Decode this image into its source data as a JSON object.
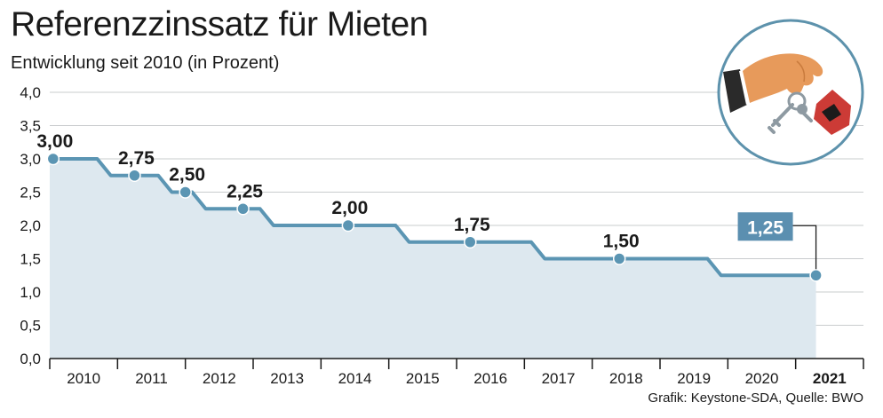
{
  "title": "Referenzzinssatz für Mieten",
  "subtitle": "Entwicklung seit 2010 (in Prozent)",
  "source": "Grafik: Keystone-SDA, Quelle: BWO",
  "colors": {
    "line": "#5b95b3",
    "area": "#dde8ef",
    "grid": "#c9ccce",
    "highlight": "#5b8fb0"
  },
  "illustration": {
    "icon": "hand-holding-house-keys-icon"
  },
  "chart_data": {
    "type": "area",
    "x_domain": [
      2010,
      2022
    ],
    "ylim": [
      0,
      4
    ],
    "yticks": [
      "0,0",
      "0,5",
      "1,0",
      "1,5",
      "2,0",
      "2,5",
      "3,0",
      "3,5",
      "4,0"
    ],
    "year_labels": [
      "2010",
      "2011",
      "2012",
      "2013",
      "2014",
      "2015",
      "2016",
      "2017",
      "2018",
      "2019",
      "2020",
      "2021"
    ],
    "highlight_year": "2021",
    "grid": true,
    "series": [
      {
        "step_points": [
          [
            2010.0,
            3.0
          ],
          [
            2010.7,
            3.0
          ],
          [
            2010.9,
            2.75
          ],
          [
            2011.6,
            2.75
          ],
          [
            2011.8,
            2.5
          ],
          [
            2012.1,
            2.5
          ],
          [
            2012.3,
            2.25
          ],
          [
            2013.1,
            2.25
          ],
          [
            2013.3,
            2.0
          ],
          [
            2015.1,
            2.0
          ],
          [
            2015.3,
            1.75
          ],
          [
            2017.1,
            1.75
          ],
          [
            2017.3,
            1.5
          ],
          [
            2019.7,
            1.5
          ],
          [
            2019.9,
            1.25
          ],
          [
            2021.3,
            1.25
          ]
        ],
        "markers": [
          {
            "x": 2010.05,
            "y": 3.0,
            "label": "3,00"
          },
          {
            "x": 2011.25,
            "y": 2.75,
            "label": "2,75"
          },
          {
            "x": 2012.0,
            "y": 2.5,
            "label": "2,50"
          },
          {
            "x": 2012.85,
            "y": 2.25,
            "label": "2,25"
          },
          {
            "x": 2014.4,
            "y": 2.0,
            "label": "2,00"
          },
          {
            "x": 2016.2,
            "y": 1.75,
            "label": "1,75"
          },
          {
            "x": 2018.4,
            "y": 1.5,
            "label": "1,50"
          },
          {
            "x": 2021.3,
            "y": 1.25,
            "label": "1,25"
          }
        ]
      }
    ]
  }
}
